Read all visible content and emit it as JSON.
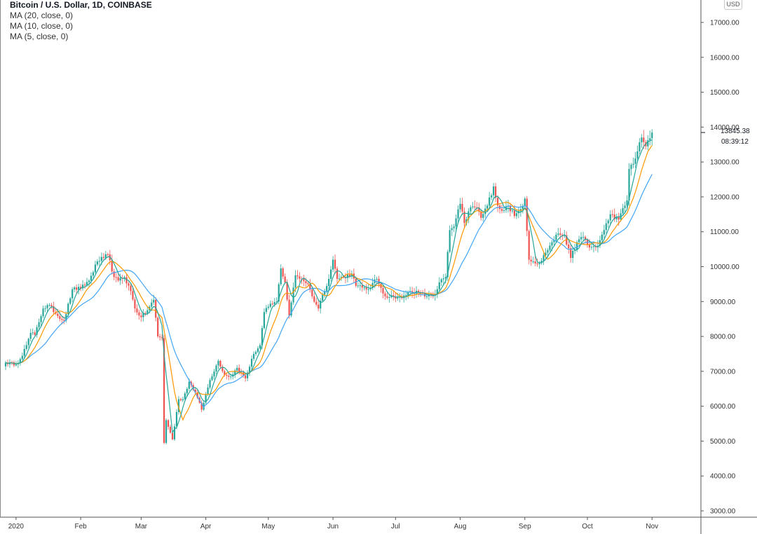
{
  "legend": {
    "title": "Bitcoin / U.S. Dollar, 1D, COINBASE",
    "ma20": "MA (20, close, 0)",
    "ma10": "MA (10, close, 0)",
    "ma5": "MA (5, close, 0)"
  },
  "currency": "USD",
  "last_price": "13845.38",
  "countdown": "08:39:12",
  "colors": {
    "up": "#26a69a",
    "down": "#ef5350",
    "ma20": "#42a5f5",
    "ma10": "#ff9800",
    "ma5": "#26a69a",
    "background": "#ffffff"
  },
  "chart_data": {
    "type": "candlestick",
    "title": "Bitcoin / U.S. Dollar, 1D, COINBASE",
    "y_tick_labels": [
      "17000.00",
      "16000.00",
      "15000.00",
      "14000.00",
      "13000.00",
      "12000.00",
      "11000.00",
      "10000.00",
      "9000.00",
      "8000.00",
      "7000.00",
      "6000.00",
      "5000.00",
      "4000.00",
      "3000.00"
    ],
    "y_ticks": [
      17000,
      16000,
      15000,
      14000,
      13000,
      12000,
      11000,
      10000,
      9000,
      8000,
      7000,
      6000,
      5000,
      4000,
      3000
    ],
    "ylim": [
      2600,
      17500
    ],
    "x_tick_labels": [
      "2020",
      "Feb",
      "Mar",
      "Apr",
      "May",
      "Jun",
      "Jul",
      "Aug",
      "Sep",
      "Oct",
      "Nov"
    ],
    "x_tick_dates": [
      "2020-01-01",
      "2020-02-01",
      "2020-03-01",
      "2020-04-01",
      "2020-05-01",
      "2020-06-01",
      "2020-07-01",
      "2020-08-01",
      "2020-09-01",
      "2020-10-01",
      "2020-11-01"
    ],
    "start_date": "2019-12-27",
    "close_anchors": [
      [
        "2019-12-27",
        7250
      ],
      [
        "2020-01-01",
        7200
      ],
      [
        "2020-01-03",
        7350
      ],
      [
        "2020-01-06",
        7750
      ],
      [
        "2020-01-08",
        8100
      ],
      [
        "2020-01-10",
        8050
      ],
      [
        "2020-01-14",
        8800
      ],
      [
        "2020-01-17",
        8900
      ],
      [
        "2020-01-20",
        8650
      ],
      [
        "2020-01-24",
        8450
      ],
      [
        "2020-01-28",
        9350
      ],
      [
        "2020-02-01",
        9380
      ],
      [
        "2020-02-05",
        9600
      ],
      [
        "2020-02-09",
        10150
      ],
      [
        "2020-02-12",
        10250
      ],
      [
        "2020-02-14",
        10350
      ],
      [
        "2020-02-17",
        9700
      ],
      [
        "2020-02-19",
        9600
      ],
      [
        "2020-02-22",
        9700
      ],
      [
        "2020-02-25",
        9300
      ],
      [
        "2020-02-27",
        8800
      ],
      [
        "2020-03-01",
        8550
      ],
      [
        "2020-03-04",
        8750
      ],
      [
        "2020-03-07",
        9050
      ],
      [
        "2020-03-09",
        8000
      ],
      [
        "2020-03-11",
        7950
      ],
      [
        "2020-03-12",
        4950
      ],
      [
        "2020-03-13",
        5600
      ],
      [
        "2020-03-16",
        5050
      ],
      [
        "2020-03-19",
        6200
      ],
      [
        "2020-03-21",
        6200
      ],
      [
        "2020-03-24",
        6700
      ],
      [
        "2020-03-27",
        6400
      ],
      [
        "2020-03-30",
        5900
      ],
      [
        "2020-04-03",
        6750
      ],
      [
        "2020-04-07",
        7300
      ],
      [
        "2020-04-10",
        6900
      ],
      [
        "2020-04-13",
        6850
      ],
      [
        "2020-04-16",
        7100
      ],
      [
        "2020-04-20",
        6800
      ],
      [
        "2020-04-24",
        7500
      ],
      [
        "2020-04-27",
        7750
      ],
      [
        "2020-04-29",
        8700
      ],
      [
        "2020-05-01",
        8850
      ],
      [
        "2020-05-05",
        9000
      ],
      [
        "2020-05-07",
        9950
      ],
      [
        "2020-05-09",
        9550
      ],
      [
        "2020-05-11",
        8600
      ],
      [
        "2020-05-14",
        9750
      ],
      [
        "2020-05-17",
        9650
      ],
      [
        "2020-05-20",
        9500
      ],
      [
        "2020-05-22",
        9150
      ],
      [
        "2020-05-25",
        8800
      ],
      [
        "2020-05-27",
        9200
      ],
      [
        "2020-05-30",
        9650
      ],
      [
        "2020-06-01",
        10200
      ],
      [
        "2020-06-03",
        9650
      ],
      [
        "2020-06-06",
        9700
      ],
      [
        "2020-06-10",
        9800
      ],
      [
        "2020-06-12",
        9450
      ],
      [
        "2020-06-15",
        9400
      ],
      [
        "2020-06-18",
        9350
      ],
      [
        "2020-06-22",
        9650
      ],
      [
        "2020-06-26",
        9150
      ],
      [
        "2020-06-30",
        9150
      ],
      [
        "2020-07-04",
        9100
      ],
      [
        "2020-07-08",
        9300
      ],
      [
        "2020-07-12",
        9250
      ],
      [
        "2020-07-16",
        9150
      ],
      [
        "2020-07-20",
        9200
      ],
      [
        "2020-07-22",
        9550
      ],
      [
        "2020-07-25",
        9700
      ],
      [
        "2020-07-27",
        11050
      ],
      [
        "2020-07-29",
        11150
      ],
      [
        "2020-08-01",
        11800
      ],
      [
        "2020-08-03",
        11250
      ],
      [
        "2020-08-06",
        11700
      ],
      [
        "2020-08-09",
        11700
      ],
      [
        "2020-08-11",
        11400
      ],
      [
        "2020-08-14",
        11750
      ],
      [
        "2020-08-17",
        12300
      ],
      [
        "2020-08-19",
        11750
      ],
      [
        "2020-08-21",
        11600
      ],
      [
        "2020-08-24",
        11750
      ],
      [
        "2020-08-27",
        11450
      ],
      [
        "2020-08-30",
        11650
      ],
      [
        "2020-09-01",
        11950
      ],
      [
        "2020-09-03",
        10200
      ],
      [
        "2020-09-05",
        10150
      ],
      [
        "2020-09-08",
        10100
      ],
      [
        "2020-09-11",
        10400
      ],
      [
        "2020-09-14",
        10700
      ],
      [
        "2020-09-17",
        10950
      ],
      [
        "2020-09-20",
        10900
      ],
      [
        "2020-09-23",
        10250
      ],
      [
        "2020-09-26",
        10700
      ],
      [
        "2020-09-29",
        10850
      ],
      [
        "2020-10-02",
        10550
      ],
      [
        "2020-10-06",
        10600
      ],
      [
        "2020-10-09",
        11050
      ],
      [
        "2020-10-12",
        11500
      ],
      [
        "2020-10-16",
        11350
      ],
      [
        "2020-10-20",
        11900
      ],
      [
        "2020-10-21",
        12800
      ],
      [
        "2020-10-24",
        13100
      ],
      [
        "2020-10-27",
        13700
      ],
      [
        "2020-10-29",
        13450
      ],
      [
        "2020-11-01",
        13845
      ]
    ]
  }
}
